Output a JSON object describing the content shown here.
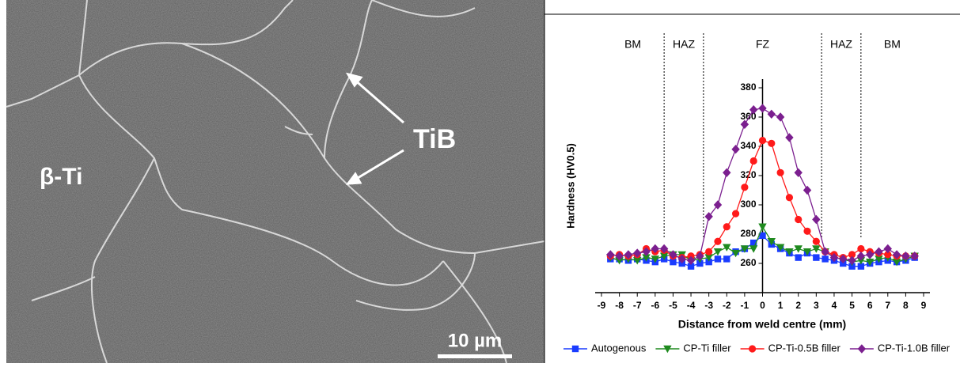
{
  "micrograph": {
    "particle_label": "TiB",
    "phase_label": "β-Ti",
    "scale_bar": "10 µm"
  },
  "chart_data": {
    "type": "line",
    "ylabel": "Hardness (HV0.5)",
    "xlabel": "Distance from weld centre (mm)",
    "regions": [
      "BM",
      "HAZ",
      "FZ",
      "HAZ",
      "BM"
    ],
    "region_boundaries": [
      -5.5,
      -3.3,
      3.3,
      5.5
    ],
    "x": [
      -8.5,
      -8,
      -7.5,
      -7,
      -6.5,
      -6,
      -5.5,
      -5,
      -4.5,
      -4,
      -3.5,
      -3,
      -2.5,
      -2,
      -1.5,
      -1,
      -0.5,
      0,
      0.5,
      1,
      1.5,
      2,
      2.5,
      3,
      3.5,
      4,
      4.5,
      5,
      5.5,
      6,
      6.5,
      7,
      7.5,
      8,
      8.5
    ],
    "series": [
      {
        "name": "Autogenous",
        "color": "#1a3cff",
        "marker": "square",
        "values": [
          263,
          263,
          262,
          263,
          262,
          261,
          263,
          261,
          260,
          258,
          260,
          261,
          263,
          263,
          268,
          270,
          274,
          279,
          273,
          270,
          267,
          264,
          267,
          264,
          263,
          262,
          260,
          258,
          258,
          260,
          261,
          262,
          261,
          262,
          264
        ]
      },
      {
        "name": "CP-Ti filler",
        "color": "#1f8a1f",
        "marker": "triangle-down",
        "values": [
          264,
          262,
          263,
          262,
          264,
          263,
          265,
          266,
          266,
          262,
          263,
          264,
          268,
          271,
          267,
          270,
          270,
          285,
          275,
          271,
          268,
          270,
          268,
          270,
          268,
          264,
          263,
          261,
          262,
          261,
          263,
          264,
          261,
          263,
          265
        ]
      },
      {
        "name": "CP-Ti-0.5B filler",
        "color": "#ff1a1a",
        "marker": "circle",
        "values": [
          265,
          266,
          265,
          266,
          270,
          268,
          269,
          265,
          264,
          265,
          266,
          268,
          275,
          285,
          294,
          312,
          330,
          344,
          342,
          322,
          305,
          290,
          282,
          275,
          268,
          266,
          264,
          266,
          270,
          268,
          267,
          266,
          265,
          265,
          265
        ]
      },
      {
        "name": "CP-Ti-1.0B filler",
        "color": "#7b1f8f",
        "marker": "diamond",
        "values": [
          266,
          265,
          266,
          267,
          268,
          270,
          270,
          266,
          263,
          262,
          265,
          292,
          300,
          322,
          338,
          355,
          365,
          366,
          362,
          360,
          346,
          322,
          310,
          290,
          268,
          264,
          263,
          262,
          265,
          266,
          268,
          270,
          266,
          265,
          265
        ]
      }
    ],
    "xlim": [
      -9,
      9
    ],
    "xticks": [
      -9,
      -8,
      -7,
      -6,
      -5,
      -4,
      -3,
      -2,
      -1,
      0,
      1,
      2,
      3,
      4,
      5,
      6,
      7,
      8,
      9
    ],
    "ylim": [
      240,
      420
    ],
    "yticks": [
      260,
      280,
      300,
      320,
      340,
      360,
      380
    ]
  }
}
